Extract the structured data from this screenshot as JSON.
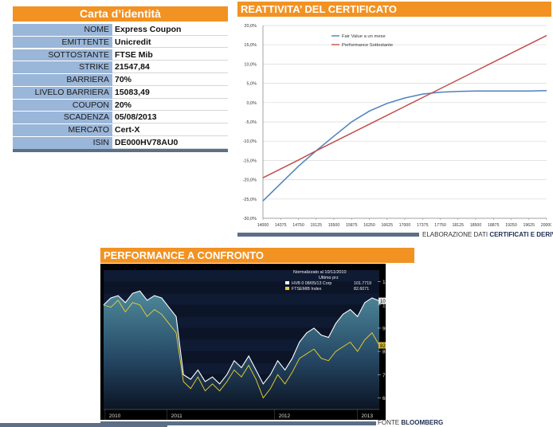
{
  "id_card": {
    "title": "Carta d’identità",
    "rows": [
      {
        "key": "NOME",
        "value": "Express Coupon"
      },
      {
        "key": "EMITTENTE",
        "value": "Unicredit"
      },
      {
        "key": "SOTTOSTANTE",
        "value": "FTSE Mib"
      },
      {
        "key": "STRIKE",
        "value": "21547,84"
      },
      {
        "key": "BARRIERA",
        "value": "70%"
      },
      {
        "key": "LIVELO BARRIERA",
        "value": "15083,49"
      },
      {
        "key": "COUPON",
        "value": "20%"
      },
      {
        "key": "SCADENZA",
        "value": "05/08/2013"
      },
      {
        "key": "MERCATO",
        "value": "Cert-X"
      },
      {
        "key": "ISIN",
        "value": "DE000HV78AU0"
      }
    ]
  },
  "reattivita": {
    "title": "REATTIVITA’ DEL CERTIFICATO",
    "source_prefix": "ELABORAZIONE DATI ",
    "source_bold": "CERTIFICATI E DERIVATI"
  },
  "performance": {
    "title": "PERFORMANCE A CONFRONTO",
    "source_prefix": "FONTE ",
    "source_bold": "BLOOMBERG"
  },
  "chart_data": [
    {
      "type": "line",
      "x": [
        14000,
        14375,
        14750,
        15125,
        15500,
        15875,
        16250,
        16625,
        17000,
        17375,
        17750,
        18125,
        18500,
        18875,
        19250,
        19625,
        20000
      ],
      "x_tick_labels": [
        "14000",
        "14375",
        "14750",
        "15125",
        "15500",
        "15875",
        "16250",
        "16625",
        "17000",
        "17375",
        "17750",
        "18125",
        "18500",
        "18875",
        "19250",
        "19625",
        "20000"
      ],
      "ylim": [
        -30,
        20
      ],
      "y_ticks": [
        -30,
        -25,
        -20,
        -15,
        -10,
        -5,
        0,
        5,
        10,
        15,
        20
      ],
      "y_tick_labels": [
        "-30,0%",
        "-25,0%",
        "-20,0%",
        "-15,0%",
        "-10,0%",
        "-5,0%",
        "0,0%",
        "5,0%",
        "10,0%",
        "15,0%",
        "20,0%"
      ],
      "grid": true,
      "legend": "top-left",
      "series": [
        {
          "name": "Fair Value a un mese",
          "color": "#4f81bd",
          "values": [
            -25.5,
            -21.0,
            -16.5,
            -12.5,
            -8.7,
            -5.0,
            -2.2,
            -0.2,
            1.2,
            2.2,
            2.7,
            2.9,
            3.0,
            3.0,
            3.0,
            3.0,
            3.1
          ]
        },
        {
          "name": "Performance Sottostante",
          "color": "#c0504d",
          "values": [
            -19.5,
            -17.2,
            -14.9,
            -12.5,
            -10.2,
            -7.9,
            -5.6,
            -3.3,
            -1.0,
            1.3,
            3.6,
            5.9,
            8.2,
            10.5,
            12.8,
            15.1,
            17.4
          ]
        }
      ]
    },
    {
      "type": "line",
      "title": "Normalizzato al 10/11/2010",
      "subtitle": "Ultimo prz",
      "x_tick_labels": [
        "2010",
        "2011",
        "2012",
        "2013"
      ],
      "ylim": [
        55,
        115
      ],
      "y_ticks": [
        60,
        70,
        80,
        90,
        100,
        110
      ],
      "y_tick_labels": [
        "60",
        "70",
        "80",
        "90",
        "100",
        "110"
      ],
      "legend": "top-right",
      "series": [
        {
          "name": "HVB 0 08/05/13 Corp",
          "last": "101.7719",
          "color": "#ffffff",
          "values": [
            100,
            103,
            104,
            101,
            105,
            106,
            102,
            104,
            103,
            99,
            95,
            70,
            68,
            72,
            67,
            69,
            66,
            70,
            76,
            73,
            78,
            72,
            66,
            70,
            76,
            72,
            77,
            84,
            88,
            90,
            87,
            86,
            92,
            96,
            98,
            95,
            101,
            103,
            101.77
          ]
        },
        {
          "name": "FTSEMIB Index",
          "last": "82.6071",
          "color": "#f0d030",
          "values": [
            100,
            99,
            102,
            97,
            101,
            100,
            95,
            98,
            96,
            92,
            88,
            67,
            64,
            69,
            63,
            66,
            63,
            67,
            72,
            69,
            74,
            68,
            60,
            64,
            70,
            66,
            71,
            77,
            79,
            81,
            77,
            76,
            80,
            82,
            84,
            80,
            85,
            88,
            82.61
          ]
        }
      ]
    }
  ]
}
